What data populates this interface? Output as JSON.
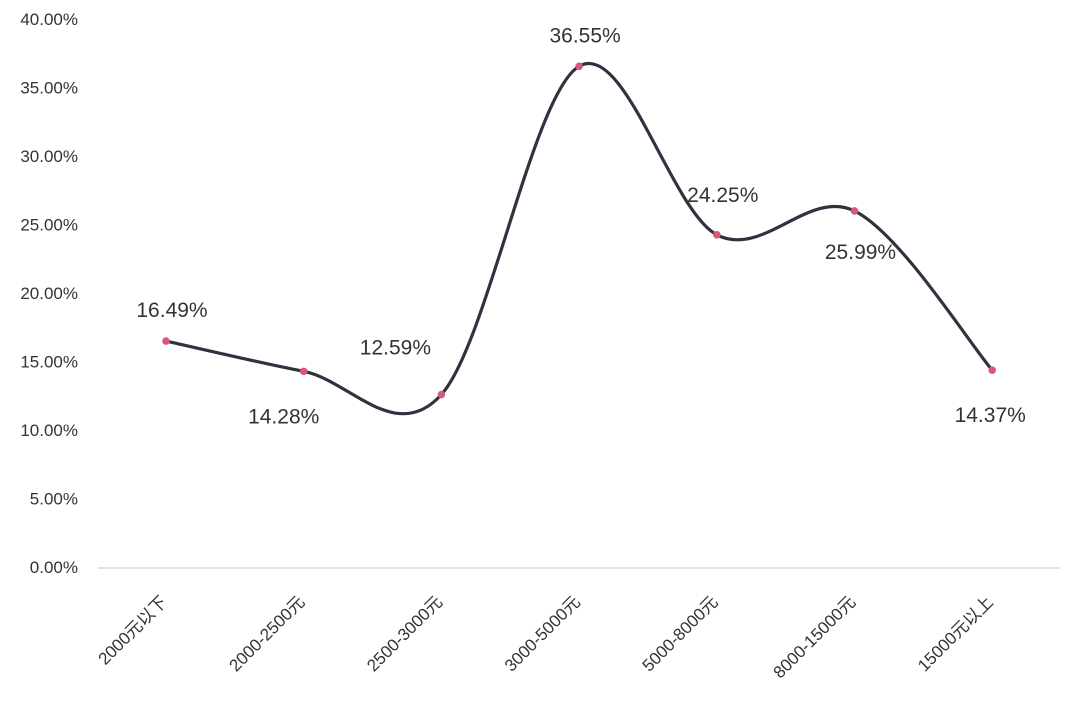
{
  "chart_data": {
    "type": "line",
    "smooth": true,
    "categories": [
      "2000元以下",
      "2000-2500元",
      "2500-3000元",
      "3000-5000元",
      "5000-8000元",
      "8000-15000元",
      "15000元以上"
    ],
    "series": [
      {
        "values": [
          16.49,
          14.28,
          12.59,
          36.55,
          24.25,
          25.99,
          14.37
        ],
        "labels": [
          "16.49%",
          "14.28%",
          "12.59%",
          "36.55%",
          "24.25%",
          "25.99%",
          "14.37%"
        ]
      }
    ],
    "ylim": [
      0,
      40
    ],
    "yticks": [
      0,
      5,
      10,
      15,
      20,
      25,
      30,
      35,
      40
    ],
    "ytick_labels": [
      "0.00%",
      "5.00%",
      "10.00%",
      "15.00%",
      "20.00%",
      "25.00%",
      "30.00%",
      "35.00%",
      "40.00%"
    ],
    "grid": false,
    "legend": "none",
    "colors": {
      "line": "#2e3340",
      "marker": "#d9587a",
      "axis": "#d9d9d9",
      "text": "#333333"
    }
  }
}
